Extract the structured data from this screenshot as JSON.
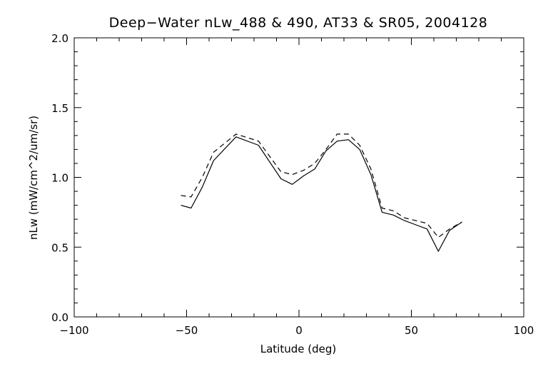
{
  "chart_data": {
    "type": "line",
    "title": "Deep−Water nLw_488 & 490, AT33 & SR05, 2004128",
    "xlabel": "Latitude (deg)",
    "ylabel": "nLw (mW/cm^2/um/sr)",
    "xlim": [
      -100,
      100
    ],
    "ylim": [
      0.0,
      2.0
    ],
    "xticks": [
      -100,
      -50,
      0,
      50,
      100
    ],
    "xtick_labels": [
      "−100",
      "−50",
      "0",
      "50",
      "100"
    ],
    "yticks": [
      0.0,
      0.5,
      1.0,
      1.5,
      2.0
    ],
    "ytick_labels": [
      "0.0",
      "0.5",
      "1.0",
      "1.5",
      "2.0"
    ],
    "grid": false,
    "colors": {
      "line": "#000000",
      "background": "#ffffff"
    },
    "series": [
      {
        "style": "solid",
        "x": [
          -52.5,
          -48,
          -43,
          -38,
          -28,
          -18,
          -8,
          -3,
          2,
          7,
          12,
          17,
          22,
          27,
          32,
          37,
          42,
          47,
          52,
          57,
          62,
          67,
          72.5
        ],
        "y": [
          0.8,
          0.78,
          0.93,
          1.12,
          1.29,
          1.23,
          0.99,
          0.95,
          1.01,
          1.06,
          1.19,
          1.26,
          1.27,
          1.2,
          1.02,
          0.75,
          0.73,
          0.69,
          0.66,
          0.63,
          0.47,
          0.62,
          0.68
        ]
      },
      {
        "style": "dashed",
        "x": [
          -52.5,
          -48,
          -43,
          -38,
          -28,
          -18,
          -8,
          -3,
          2,
          7,
          12,
          17,
          22,
          27,
          32,
          37,
          42,
          47,
          52,
          57,
          62,
          67,
          72.5
        ],
        "y": [
          0.87,
          0.86,
          1.0,
          1.18,
          1.31,
          1.26,
          1.04,
          1.02,
          1.05,
          1.1,
          1.2,
          1.31,
          1.31,
          1.23,
          1.06,
          0.78,
          0.76,
          0.71,
          0.69,
          0.67,
          0.57,
          0.63,
          0.68
        ]
      }
    ]
  }
}
